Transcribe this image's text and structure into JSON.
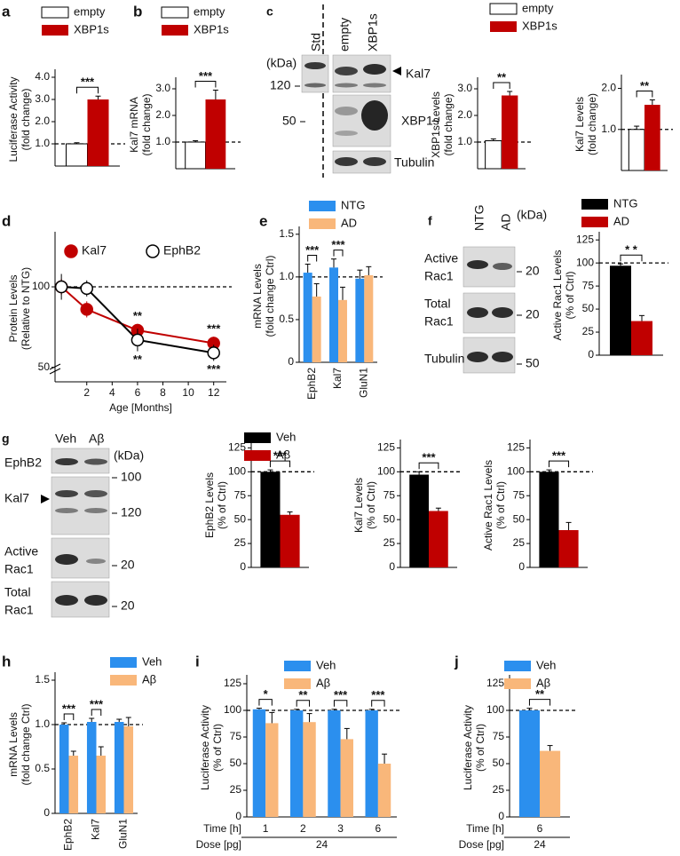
{
  "chart_data": [
    {
      "type": "bar",
      "label": "a",
      "ylabel": [
        "Luciferase Activity",
        "(fold change)"
      ],
      "ylim": [
        0,
        4.2
      ],
      "yticks": [
        {
          "value": 1,
          "label": "1.0"
        },
        {
          "value": 2,
          "label": "2.0"
        },
        {
          "value": 3,
          "label": "3.0"
        },
        {
          "value": 4,
          "label": "4.0"
        }
      ],
      "reference_line": 1,
      "significance": [
        "***"
      ],
      "series": [
        {
          "name": "empty",
          "color": "#ffffff",
          "edge_color": "#000000",
          "values": [
            1.0
          ],
          "errors": [
            0.05
          ]
        },
        {
          "name": "XBP1s",
          "color": "#c00000",
          "values": [
            3.0
          ],
          "errors": [
            0.15
          ]
        }
      ]
    },
    {
      "type": "bar",
      "label": "b",
      "ylabel": [
        "Kal7 mRNA",
        "(fold change)"
      ],
      "ylim": [
        0,
        3.3
      ],
      "yticks": [
        {
          "value": 1,
          "label": "1.0"
        },
        {
          "value": 2,
          "label": "2.0"
        },
        {
          "value": 3,
          "label": "3.0"
        }
      ],
      "reference_line": 1,
      "significance": [
        "***"
      ],
      "series": [
        {
          "name": "empty",
          "color": "#ffffff",
          "edge_color": "#000000",
          "values": [
            1.0
          ],
          "errors": [
            0.05
          ]
        },
        {
          "name": "XBP1s",
          "color": "#c00000",
          "values": [
            2.6
          ],
          "errors": [
            0.35
          ]
        }
      ]
    },
    {
      "type": "bar",
      "ylabel": [
        "XBP1s Levels",
        "(fold change)"
      ],
      "ylim": [
        0,
        3.3
      ],
      "yticks": [
        {
          "value": 1,
          "label": "1.0"
        },
        {
          "value": 2,
          "label": "2.0"
        },
        {
          "value": 3,
          "label": "3.0"
        }
      ],
      "reference_line": 1,
      "significance": [
        "**"
      ],
      "series": [
        {
          "name": "empty",
          "color": "#ffffff",
          "edge_color": "#000000",
          "values": [
            1.05
          ],
          "errors": [
            0.07
          ]
        },
        {
          "name": "XBP1s",
          "color": "#c00000",
          "values": [
            2.75
          ],
          "errors": [
            0.15
          ]
        }
      ]
    },
    {
      "type": "bar",
      "ylabel": [
        "Kal7 Levels",
        "(fold change)"
      ],
      "ylim": [
        0,
        2.25
      ],
      "yticks": [
        {
          "value": 1,
          "label": "1.0"
        },
        {
          "value": 2,
          "label": "2.0"
        }
      ],
      "reference_line": 1,
      "significance": [
        "**"
      ],
      "series": [
        {
          "color": "#ffffff",
          "edge_color": "#000000",
          "values": [
            1.0
          ],
          "errors": [
            0.08
          ]
        },
        {
          "color": "#c00000",
          "values": [
            1.6
          ],
          "errors": [
            0.12
          ]
        }
      ]
    },
    {
      "type": "line",
      "label": "d",
      "ylabel": [
        "Protein Levels",
        "(Relative to NTG)"
      ],
      "xlabel": "Age [Months]",
      "x": [
        0,
        2,
        6,
        12
      ],
      "xlim": [
        -0.5,
        13
      ],
      "xticks": [
        2,
        4,
        6,
        8,
        10,
        12
      ],
      "ylim": [
        41,
        132
      ],
      "yticks": [
        50,
        100
      ],
      "reference_line": 100,
      "series": [
        {
          "name": "Kal7",
          "color": "#c00000",
          "edge_color": "#c00000",
          "values": [
            100,
            86,
            73,
            65
          ],
          "errors": [
            5,
            5,
            4,
            4
          ],
          "significance": [
            null,
            "*",
            "**",
            "***"
          ]
        },
        {
          "name": "EphB2",
          "color": "#ffffff",
          "edge_color": "#000000",
          "values": [
            100,
            99,
            67,
            59
          ],
          "errors": [
            8,
            5,
            7,
            5
          ],
          "significance": [
            null,
            null,
            "**",
            "***"
          ]
        }
      ]
    },
    {
      "type": "bar",
      "label": "e",
      "ylabel": [
        "mRNA Levels",
        "(fold change Ctrl)"
      ],
      "ylim": [
        0,
        1.55
      ],
      "yticks": [
        0,
        0.5,
        {
          "value": 1,
          "label": "1.0"
        },
        1.5
      ],
      "reference_line": 1,
      "categories": [
        "EphB2",
        "Kal7",
        "GluN1"
      ],
      "significance": [
        "***",
        "***",
        null
      ],
      "series": [
        {
          "name": "NTG",
          "color": "#2b8fee",
          "values": [
            1.05,
            1.11,
            0.98
          ],
          "errors": [
            0.1,
            0.1,
            0.1
          ]
        },
        {
          "name": "AD",
          "color": "#f9b77a",
          "values": [
            0.77,
            0.73,
            1.02
          ],
          "errors": [
            0.15,
            0.15,
            0.1
          ]
        }
      ]
    },
    {
      "type": "bar",
      "ylabel": [
        "Active Rac1 Levels",
        "(% of Ctrl)"
      ],
      "ylim": [
        0,
        130
      ],
      "yticks": [
        0,
        25,
        50,
        75,
        100,
        125
      ],
      "reference_line": 100,
      "significance": [
        "* *"
      ],
      "series": [
        {
          "name": "NTG",
          "color": "#000000",
          "values": [
            97
          ],
          "errors": [
            2
          ]
        },
        {
          "name": "AD",
          "color": "#c00000",
          "values": [
            37
          ],
          "errors": [
            6
          ]
        }
      ]
    },
    {
      "type": "bar",
      "ylabel": [
        "EphB2 Levels",
        "(% of Ctrl)"
      ],
      "ylim": [
        0,
        130
      ],
      "yticks": [
        0,
        25,
        50,
        75,
        100,
        125
      ],
      "reference_line": 100,
      "significance": [
        "***"
      ],
      "series": [
        {
          "name": "Veh",
          "color": "#000000",
          "values": [
            100
          ],
          "errors": [
            2
          ]
        },
        {
          "name": "Aβ",
          "color": "#c00000",
          "values": [
            55
          ],
          "errors": [
            3
          ]
        }
      ]
    },
    {
      "type": "bar",
      "ylabel": [
        "Kal7 Levels",
        "(% of Ctrl)"
      ],
      "ylim": [
        0,
        130
      ],
      "yticks": [
        0,
        25,
        50,
        75,
        100,
        125
      ],
      "reference_line": 100,
      "significance": [
        "***"
      ],
      "series": [
        {
          "color": "#000000",
          "values": [
            97
          ],
          "errors": [
            3
          ]
        },
        {
          "color": "#c00000",
          "values": [
            59
          ],
          "errors": [
            3
          ]
        }
      ]
    },
    {
      "type": "bar",
      "ylabel": [
        "Active Rac1 Levels",
        "(% of Ctrl)"
      ],
      "ylim": [
        0,
        130
      ],
      "yticks": [
        0,
        25,
        50,
        75,
        100,
        125
      ],
      "reference_line": 100,
      "significance": [
        "***"
      ],
      "series": [
        {
          "color": "#000000",
          "values": [
            100
          ],
          "errors": [
            2
          ]
        },
        {
          "color": "#c00000",
          "values": [
            39
          ],
          "errors": [
            8
          ]
        }
      ]
    },
    {
      "type": "bar",
      "label": "h",
      "ylabel": [
        "mRNA Levels",
        "(fold change Ctrl)"
      ],
      "ylim": [
        0,
        1.55
      ],
      "yticks": [
        0,
        0.5,
        {
          "value": 1,
          "label": "1.0"
        },
        1.5
      ],
      "reference_line": 1,
      "categories": [
        "EphB2",
        "Kal7",
        "GluN1"
      ],
      "significance": [
        "***",
        "***",
        null
      ],
      "series": [
        {
          "name": "Veh",
          "color": "#2b8fee",
          "values": [
            1.0,
            1.03,
            1.03
          ],
          "errors": [
            0.02,
            0.04,
            0.03
          ]
        },
        {
          "name": "Aβ",
          "color": "#f9b77a",
          "values": [
            0.65,
            0.65,
            0.98
          ],
          "errors": [
            0.05,
            0.1,
            0.1
          ]
        }
      ]
    },
    {
      "type": "bar",
      "label": "i",
      "ylabel": [
        "Luciferase Activity",
        "(% of Ctrl)"
      ],
      "ylim": [
        0,
        130
      ],
      "yticks": [
        0,
        25,
        50,
        75,
        100,
        125
      ],
      "reference_line": 100,
      "categories": [
        "1",
        "2",
        "3",
        "6"
      ],
      "category_label": "Time [h]",
      "dose_label": "Dose [pg]",
      "dose": "24",
      "significance": [
        "*",
        "**",
        "***",
        "***"
      ],
      "series": [
        {
          "name": "Veh",
          "color": "#2b8fee",
          "values": [
            101,
            100,
            100,
            100
          ],
          "errors": [
            1,
            1,
            1,
            1
          ]
        },
        {
          "name": "Aβ",
          "color": "#f9b77a",
          "values": [
            88,
            89,
            73,
            50
          ],
          "errors": [
            10,
            8,
            10,
            9
          ]
        }
      ]
    },
    {
      "type": "bar",
      "label": "j",
      "ylabel": [
        "Luciferase Activity",
        "(% of Ctrl)"
      ],
      "ylim": [
        0,
        130
      ],
      "yticks": [
        0,
        25,
        50,
        75,
        100,
        125
      ],
      "reference_line": 100,
      "categories": [
        "6"
      ],
      "category_label": "Time [h]",
      "dose_label": "Dose [pg]",
      "dose": "24",
      "significance": [
        "**"
      ],
      "series": [
        {
          "name": "Veh",
          "color": "#2b8fee",
          "values": [
            100
          ],
          "errors": [
            2
          ]
        },
        {
          "name": "Aβ",
          "color": "#f9b77a",
          "values": [
            62
          ],
          "errors": [
            5
          ]
        }
      ]
    }
  ],
  "blots": [
    {
      "label": "c",
      "lanes": [
        "Std",
        "empty",
        "XBP1s"
      ],
      "kda_label": "(kDa)",
      "markers": [
        "120",
        "50"
      ],
      "bands": [
        [
          "Kal7"
        ],
        [
          "XBP1s"
        ],
        [
          "Tubulin"
        ]
      ]
    },
    {
      "label": "f",
      "lanes": [
        "NTG",
        "AD"
      ],
      "kda_label": "(kDa)",
      "markers": [
        "20",
        "20",
        "50"
      ],
      "bands": [
        [
          "Active",
          "Rac1"
        ],
        [
          "Total",
          "Rac1"
        ],
        [
          "Tubulin"
        ]
      ]
    },
    {
      "label": "g",
      "lanes": [
        "Veh",
        "Aβ"
      ],
      "kda_label": "(kDa)",
      "markers": [
        "100",
        "120",
        "20",
        "20"
      ],
      "bands": [
        [
          "EphB2"
        ],
        [
          "Kal7"
        ],
        [
          "Active",
          "Rac1"
        ],
        [
          "Total",
          "Rac1"
        ]
      ]
    }
  ]
}
